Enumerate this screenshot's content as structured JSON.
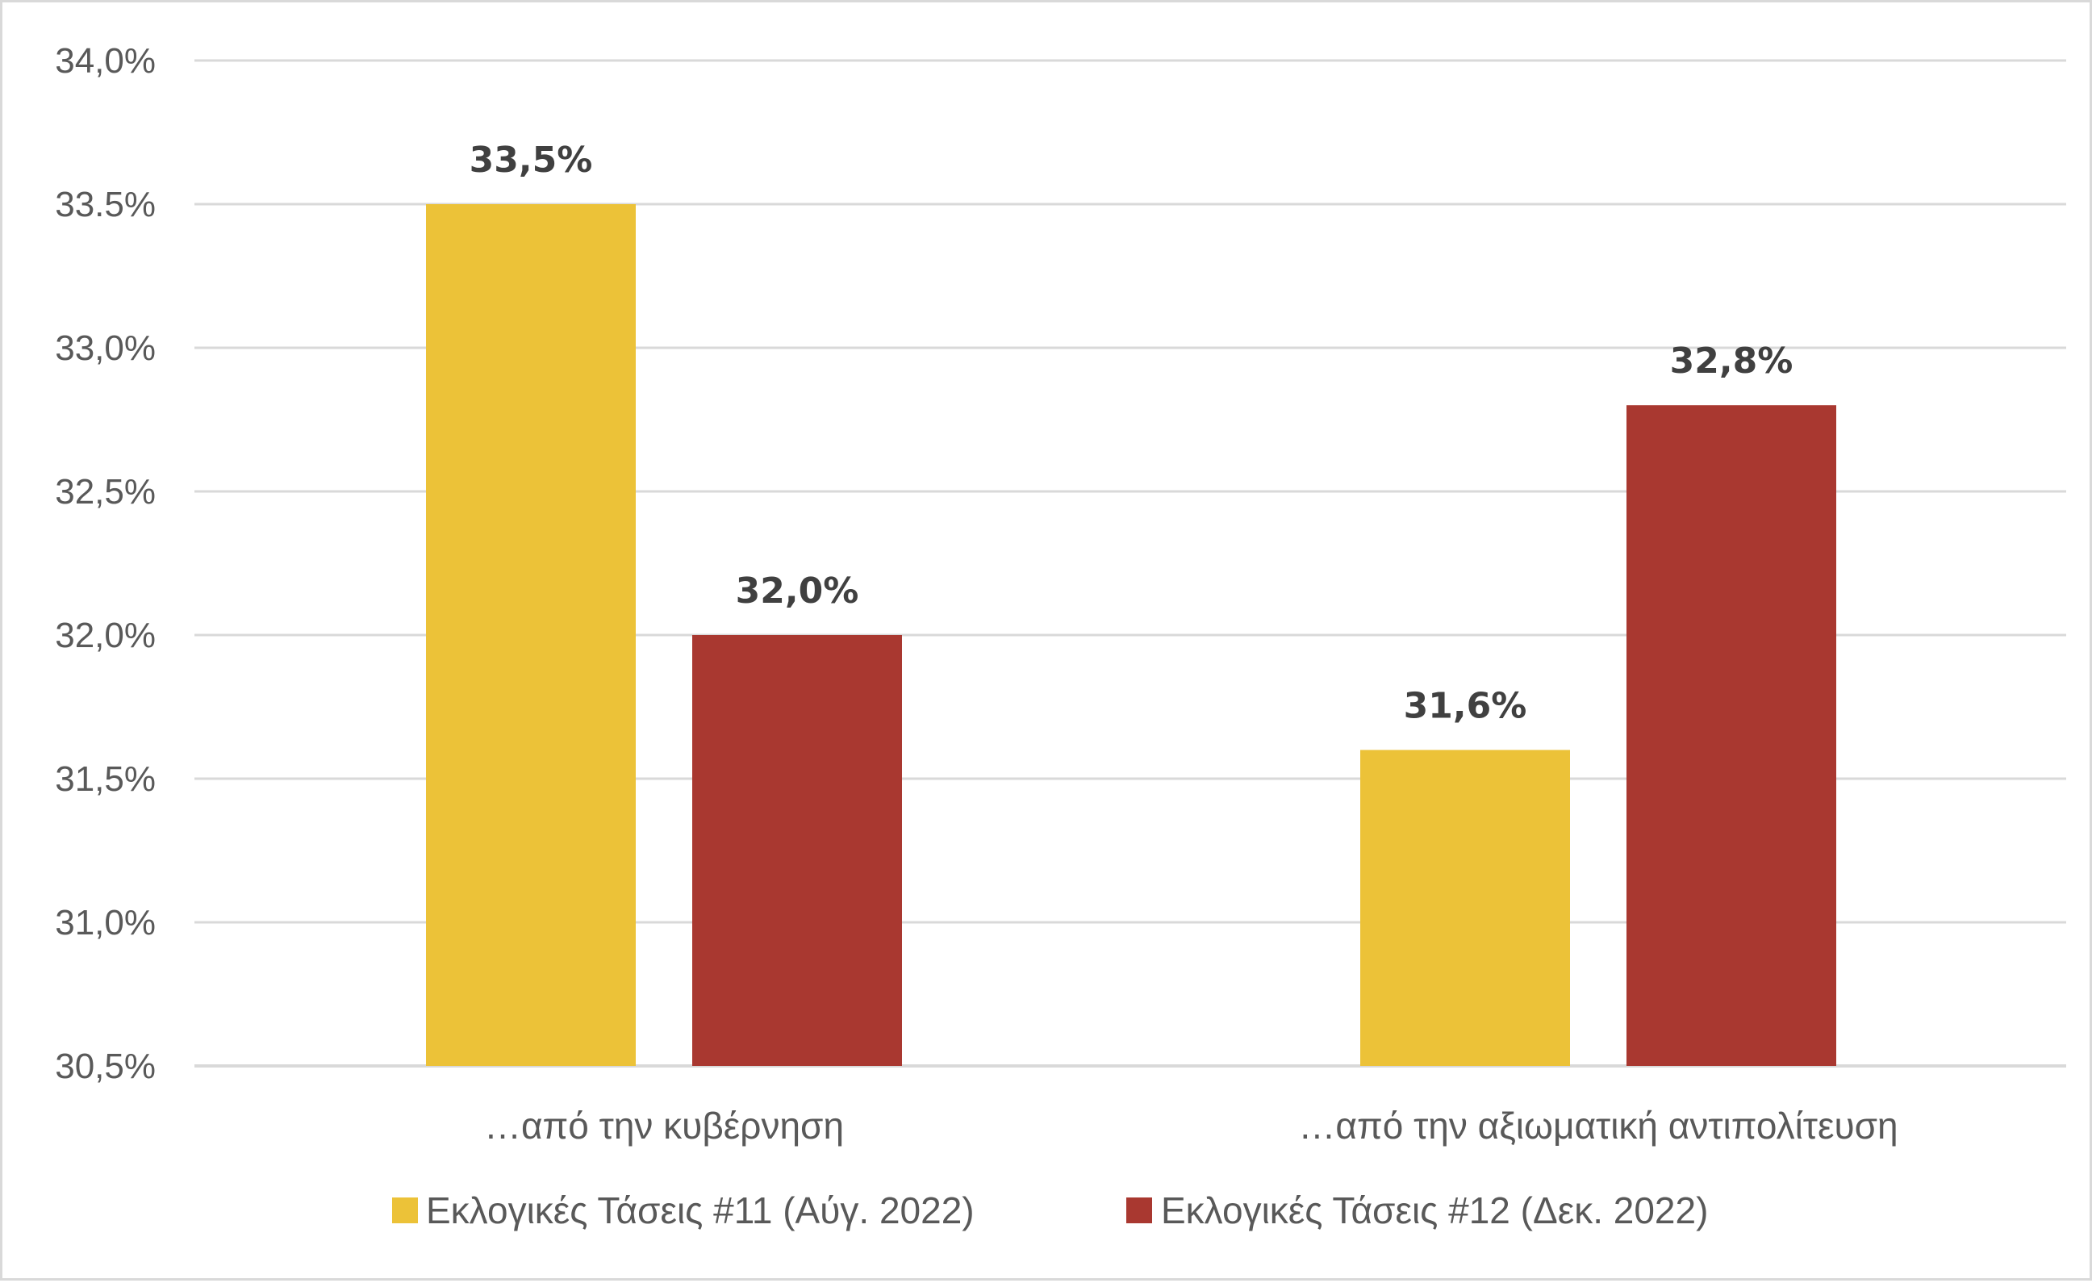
{
  "chart_data": {
    "type": "bar",
    "categories": [
      "…από την κυβέρνηση",
      "…από την αξιωματική αντιπολίτευση"
    ],
    "series": [
      {
        "name": "Εκλογικές Τάσεις #11 (Αύγ. 2022)",
        "values": [
          33.5,
          31.6
        ],
        "value_labels": [
          "33,5%",
          "31,6%"
        ],
        "color": "#ecc238"
      },
      {
        "name": "Εκλογικές Τάσεις #12 (Δεκ. 2022)",
        "values": [
          32.0,
          32.8
        ],
        "value_labels": [
          "32,0%",
          "32,8%"
        ],
        "color": "#a93830"
      }
    ],
    "ylim": [
      30.5,
      34.0
    ],
    "yticks": [
      30.5,
      31.0,
      31.5,
      32.0,
      32.5,
      33.0,
      33.5,
      34.0
    ],
    "ytick_labels": [
      "30,5%",
      "31,0%",
      "31,5%",
      "32,0%",
      "32,5%",
      "33,0%",
      "33.5%",
      "34,0%"
    ],
    "title": "",
    "xlabel": "",
    "ylabel": "",
    "grid": true,
    "legend_position": "bottom"
  }
}
